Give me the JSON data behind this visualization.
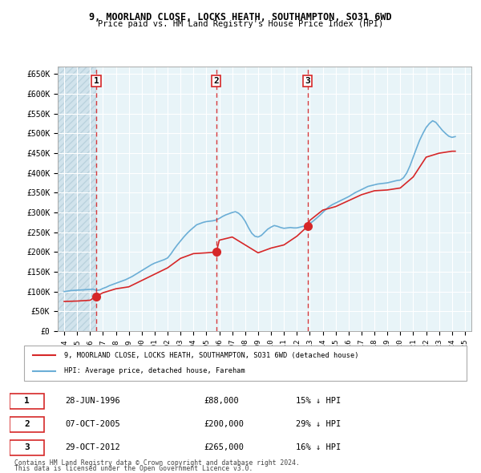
{
  "title1": "9, MOORLAND CLOSE, LOCKS HEATH, SOUTHAMPTON, SO31 6WD",
  "title2": "Price paid vs. HM Land Registry's House Price Index (HPI)",
  "ylabel_ticks": [
    "£0",
    "£50K",
    "£100K",
    "£150K",
    "£200K",
    "£250K",
    "£300K",
    "£350K",
    "£400K",
    "£450K",
    "£500K",
    "£550K",
    "£600K",
    "£650K"
  ],
  "ytick_values": [
    0,
    50000,
    100000,
    150000,
    200000,
    250000,
    300000,
    350000,
    400000,
    450000,
    500000,
    550000,
    600000,
    650000
  ],
  "xlim_start": 1993.5,
  "xlim_end": 2025.5,
  "ylim_min": 0,
  "ylim_max": 670000,
  "sale_dates": [
    1996.48,
    2005.77,
    2012.83
  ],
  "sale_prices": [
    88000,
    200000,
    265000
  ],
  "sale_labels": [
    "1",
    "2",
    "3"
  ],
  "legend_line1": "9, MOORLAND CLOSE, LOCKS HEATH, SOUTHAMPTON, SO31 6WD (detached house)",
  "legend_line2": "HPI: Average price, detached house, Fareham",
  "table_rows": [
    {
      "num": "1",
      "date": "28-JUN-1996",
      "price": "£88,000",
      "pct": "15% ↓ HPI"
    },
    {
      "num": "2",
      "date": "07-OCT-2005",
      "price": "£200,000",
      "pct": "29% ↓ HPI"
    },
    {
      "num": "3",
      "date": "29-OCT-2012",
      "price": "£265,000",
      "pct": "16% ↓ HPI"
    }
  ],
  "footer1": "Contains HM Land Registry data © Crown copyright and database right 2024.",
  "footer2": "This data is licensed under the Open Government Licence v3.0.",
  "hpi_color": "#6baed6",
  "price_color": "#d62728",
  "sale_dot_color": "#d62728",
  "vline_color": "#d62728",
  "bg_plot": "#e8f4f8",
  "bg_hatch": "#d0e8f0",
  "grid_color": "#ffffff",
  "hpi_data_x": [
    1994.0,
    1994.25,
    1994.5,
    1994.75,
    1995.0,
    1995.25,
    1995.5,
    1995.75,
    1996.0,
    1996.25,
    1996.5,
    1996.75,
    1997.0,
    1997.25,
    1997.5,
    1997.75,
    1998.0,
    1998.25,
    1998.5,
    1998.75,
    1999.0,
    1999.25,
    1999.5,
    1999.75,
    2000.0,
    2000.25,
    2000.5,
    2000.75,
    2001.0,
    2001.25,
    2001.5,
    2001.75,
    2002.0,
    2002.25,
    2002.5,
    2002.75,
    2003.0,
    2003.25,
    2003.5,
    2003.75,
    2004.0,
    2004.25,
    2004.5,
    2004.75,
    2005.0,
    2005.25,
    2005.5,
    2005.75,
    2006.0,
    2006.25,
    2006.5,
    2006.75,
    2007.0,
    2007.25,
    2007.5,
    2007.75,
    2008.0,
    2008.25,
    2008.5,
    2008.75,
    2009.0,
    2009.25,
    2009.5,
    2009.75,
    2010.0,
    2010.25,
    2010.5,
    2010.75,
    2011.0,
    2011.25,
    2011.5,
    2011.75,
    2012.0,
    2012.25,
    2012.5,
    2012.75,
    2013.0,
    2013.25,
    2013.5,
    2013.75,
    2014.0,
    2014.25,
    2014.5,
    2014.75,
    2015.0,
    2015.25,
    2015.5,
    2015.75,
    2016.0,
    2016.25,
    2016.5,
    2016.75,
    2017.0,
    2017.25,
    2017.5,
    2017.75,
    2018.0,
    2018.25,
    2018.5,
    2018.75,
    2019.0,
    2019.25,
    2019.5,
    2019.75,
    2020.0,
    2020.25,
    2020.5,
    2020.75,
    2021.0,
    2021.25,
    2021.5,
    2021.75,
    2022.0,
    2022.25,
    2022.5,
    2022.75,
    2023.0,
    2023.25,
    2023.5,
    2023.75,
    2024.0,
    2024.25
  ],
  "hpi_data_y": [
    100000,
    101000,
    102500,
    103000,
    103500,
    104000,
    104500,
    105000,
    105500,
    106000,
    103000,
    104000,
    108000,
    111000,
    115000,
    118000,
    121000,
    124000,
    127000,
    130000,
    134000,
    138000,
    143000,
    148000,
    153000,
    158000,
    163000,
    168000,
    172000,
    175000,
    178000,
    181000,
    185000,
    195000,
    207000,
    218000,
    228000,
    238000,
    247000,
    255000,
    262000,
    269000,
    272000,
    275000,
    277000,
    278000,
    279000,
    281000,
    285000,
    290000,
    294000,
    297000,
    300000,
    302000,
    298000,
    290000,
    278000,
    262000,
    248000,
    240000,
    238000,
    242000,
    250000,
    258000,
    263000,
    267000,
    265000,
    262000,
    260000,
    261000,
    262000,
    261000,
    261000,
    263000,
    265000,
    268000,
    272000,
    278000,
    285000,
    292000,
    300000,
    308000,
    315000,
    320000,
    324000,
    328000,
    332000,
    336000,
    340000,
    345000,
    350000,
    354000,
    358000,
    362000,
    366000,
    368000,
    370000,
    372000,
    373000,
    374000,
    375000,
    377000,
    379000,
    381000,
    382000,
    388000,
    400000,
    418000,
    440000,
    462000,
    483000,
    500000,
    515000,
    525000,
    532000,
    528000,
    518000,
    508000,
    500000,
    493000,
    490000,
    492000
  ],
  "price_line_x": [
    1994.0,
    1995.0,
    1996.0,
    1996.48,
    1997.0,
    1998.0,
    1999.0,
    2000.0,
    2001.0,
    2002.0,
    2003.0,
    2004.0,
    2005.0,
    2005.77,
    2006.0,
    2007.0,
    2008.0,
    2009.0,
    2010.0,
    2011.0,
    2012.0,
    2012.83,
    2013.0,
    2014.0,
    2015.0,
    2016.0,
    2017.0,
    2018.0,
    2019.0,
    2020.0,
    2021.0,
    2022.0,
    2023.0,
    2024.0,
    2024.25
  ],
  "price_line_y": [
    75000,
    76000,
    78000,
    88000,
    97000,
    107000,
    112000,
    128000,
    144000,
    160000,
    184000,
    196000,
    198000,
    200000,
    230000,
    238000,
    218000,
    198000,
    210000,
    218000,
    240000,
    265000,
    280000,
    306000,
    315000,
    330000,
    345000,
    355000,
    357000,
    362000,
    390000,
    440000,
    450000,
    455000,
    455000
  ]
}
